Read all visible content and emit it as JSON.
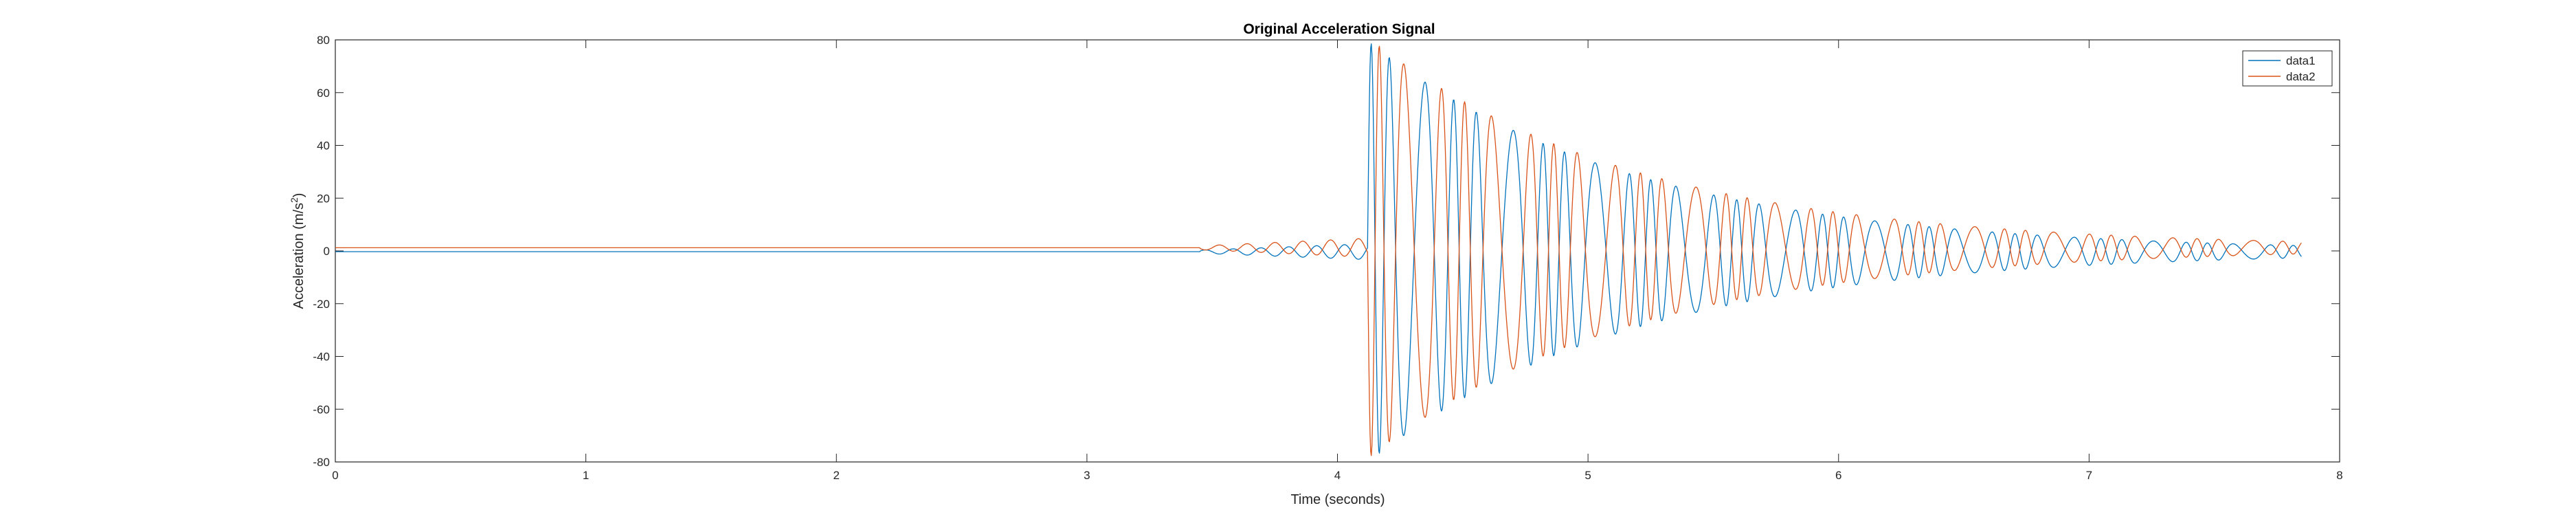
{
  "chart_data": {
    "type": "line",
    "title": "Original Acceleration Signal",
    "xlabel": "Time (seconds)",
    "ylabel": "Acceleration (m/s",
    "ylabel_superscript": "2",
    "ylabel_close": ")",
    "xlim": [
      0,
      8
    ],
    "ylim": [
      -80,
      80
    ],
    "xticks": [
      0,
      1,
      2,
      3,
      4,
      5,
      6,
      7,
      8
    ],
    "yticks": [
      -80,
      -60,
      -40,
      -20,
      0,
      20,
      40,
      60,
      80
    ],
    "grid": false,
    "legend_position": "top-right",
    "series": [
      {
        "name": "data1",
        "color": "#0072BD",
        "baseline": -0.3,
        "x_end": 7.85,
        "pre_onset": 3.45,
        "onset": 4.12,
        "pre_amplitude": 1.5,
        "peak_amplitude": 80,
        "decay_rate": 0.95,
        "frequency_hz": 9.0,
        "phase": 0.0
      },
      {
        "name": "data2",
        "color": "#D95319",
        "baseline": 1.2,
        "x_end": 7.85,
        "pre_onset": 3.45,
        "onset": 4.12,
        "pre_amplitude": 1.8,
        "peak_amplitude": 80,
        "decay_rate": 0.95,
        "frequency_hz": 9.0,
        "phase": 3.14159
      }
    ]
  }
}
